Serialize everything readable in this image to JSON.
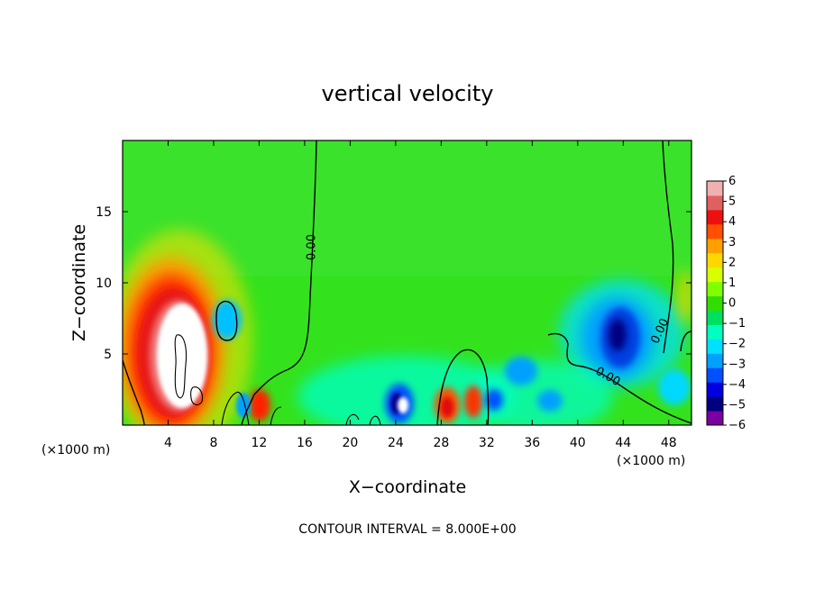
{
  "chart_data": {
    "type": "heatmap",
    "title": "vertical velocity",
    "xlabel": "X−coordinate",
    "ylabel": "Z−coordinate",
    "x_unit_label": "(×1000 m)",
    "footer": "CONTOUR INTERVAL = 8.000E+00",
    "xlim": [
      0,
      50
    ],
    "ylim": [
      0,
      20
    ],
    "x_ticks": [
      4,
      8,
      12,
      16,
      20,
      24,
      28,
      32,
      36,
      40,
      44,
      48
    ],
    "y_ticks": [
      5,
      10,
      15
    ],
    "colorbar": {
      "range": [
        -6,
        6
      ],
      "ticks": [
        6,
        5,
        4,
        3,
        2,
        1,
        0,
        -1,
        -2,
        -3,
        -4,
        -5,
        -6
      ],
      "tick_labels": [
        "6",
        "5",
        "4",
        "3",
        "2",
        "1",
        "0",
        "−1",
        "−2",
        "−3",
        "−4",
        "−5",
        "−6"
      ],
      "colors": [
        "#7a00a0",
        "#000080",
        "#0000e0",
        "#0050ff",
        "#00a0ff",
        "#00e0ff",
        "#00ffc0",
        "#00e060",
        "#33dd00",
        "#80ff00",
        "#d8ff00",
        "#ffd800",
        "#ffa000",
        "#ff5000",
        "#ee1010",
        "#e06060",
        "#f0b0b0"
      ]
    },
    "contour_labels": [
      {
        "text": "0.00",
        "x": 16.9,
        "z": 12.5,
        "rotate": -90
      },
      {
        "text": "0.00",
        "x": 42.5,
        "z": 3.2,
        "rotate": 30
      },
      {
        "text": "0.00",
        "x": 47.5,
        "z": 6.5,
        "rotate": -65
      }
    ],
    "features": [
      {
        "kind": "updraft",
        "x": 4.8,
        "z": 5.2,
        "w": 7.0
      },
      {
        "kind": "downdraft",
        "x": 44.0,
        "z": 6.5,
        "w": -5.0
      },
      {
        "kind": "updraft",
        "x": 24.5,
        "z": 1.2,
        "w": 6.0
      },
      {
        "kind": "downdraft",
        "x": 23.9,
        "z": 2.0,
        "w": -5.0
      },
      {
        "kind": "updraft",
        "x": 28.5,
        "z": 1.5,
        "w": 4.5
      },
      {
        "kind": "updraft",
        "x": 30.8,
        "z": 1.8,
        "w": 4.0
      },
      {
        "kind": "updraft",
        "x": 12.0,
        "z": 1.5,
        "w": 4.0
      },
      {
        "kind": "downdraft",
        "x": 9.2,
        "z": 7.5,
        "w": -2.5
      },
      {
        "kind": "downdraft",
        "x": 35.7,
        "z": 3.5,
        "w": -3.0
      }
    ]
  }
}
